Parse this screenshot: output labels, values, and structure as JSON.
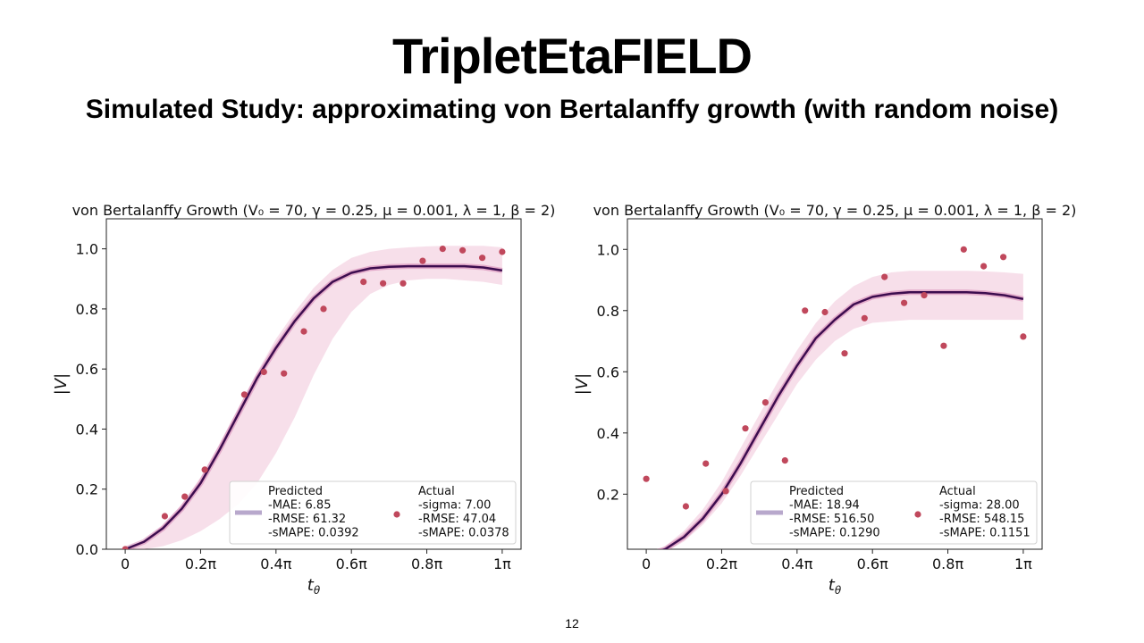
{
  "slide": {
    "title": "TripletEtaFIELD",
    "subtitle": "Simulated Study: approximating von Bertalanffy growth (with random noise)",
    "page_number": "12"
  },
  "colors": {
    "predicted_line": "#3d0d4f",
    "band": "#e8a2c2",
    "actual_points": "#c0485c",
    "legend_swatch": "#b8a8cc"
  },
  "chart_data": [
    {
      "type": "line",
      "title": "von Bertalanffy Growth (V₀ = 70, γ = 0.25, μ = 0.001, λ = 1, β = 2)",
      "xlabel": "tθ",
      "ylabel": "|V|",
      "xlim": [
        -0.05,
        1.05
      ],
      "ylim": [
        0.0,
        1.1
      ],
      "x_ticks": [
        0,
        0.2,
        0.4,
        0.6,
        0.8,
        1.0
      ],
      "x_tick_labels": [
        "0",
        "0.2π",
        "0.4π",
        "0.6π",
        "0.8π",
        "1π"
      ],
      "y_ticks": [
        0.0,
        0.2,
        0.4,
        0.6,
        0.8,
        1.0
      ],
      "y_tick_labels": [
        "0.0",
        "0.2",
        "0.4",
        "0.6",
        "0.8",
        "1.0"
      ],
      "series": [
        {
          "name": "Predicted",
          "x": [
            0.0,
            0.05,
            0.1,
            0.15,
            0.2,
            0.25,
            0.3,
            0.35,
            0.4,
            0.45,
            0.5,
            0.55,
            0.6,
            0.65,
            0.7,
            0.75,
            0.8,
            0.85,
            0.9,
            0.95,
            1.0
          ],
          "y": [
            0.0,
            0.025,
            0.07,
            0.135,
            0.22,
            0.33,
            0.45,
            0.57,
            0.67,
            0.76,
            0.835,
            0.89,
            0.92,
            0.935,
            0.94,
            0.942,
            0.942,
            0.942,
            0.942,
            0.938,
            0.928
          ],
          "band_upper": [
            0.0,
            0.03,
            0.08,
            0.15,
            0.24,
            0.35,
            0.47,
            0.59,
            0.7,
            0.79,
            0.87,
            0.93,
            0.97,
            0.99,
            1.0,
            1.005,
            1.008,
            1.01,
            1.01,
            1.01,
            1.005
          ],
          "band_lower": [
            0.0,
            0.0,
            0.01,
            0.03,
            0.06,
            0.1,
            0.15,
            0.22,
            0.32,
            0.44,
            0.58,
            0.7,
            0.79,
            0.85,
            0.88,
            0.895,
            0.9,
            0.9,
            0.895,
            0.89,
            0.88
          ]
        },
        {
          "name": "Actual",
          "x": [
            0.0,
            0.105,
            0.158,
            0.211,
            0.316,
            0.368,
            0.421,
            0.474,
            0.526,
            0.632,
            0.684,
            0.737,
            0.789,
            0.842,
            0.895,
            0.947,
            1.0
          ],
          "y": [
            0.0,
            0.11,
            0.175,
            0.265,
            0.515,
            0.59,
            0.585,
            0.725,
            0.8,
            0.89,
            0.885,
            0.885,
            0.96,
            1.0,
            0.995,
            0.97,
            0.99
          ]
        }
      ],
      "legend": {
        "position": "lower-right",
        "predicted": {
          "label": "Predicted",
          "mae": "-MAE: 6.85",
          "rmse": "-RMSE: 61.32",
          "smape": "-sMAPE: 0.0392"
        },
        "actual": {
          "label": "Actual",
          "sigma": "-sigma: 7.00",
          "rmse": "-RMSE: 47.04",
          "smape": "-sMAPE: 0.0378"
        }
      }
    },
    {
      "type": "line",
      "title": "von Bertalanffy Growth (V₀ = 70, γ = 0.25, μ = 0.001, λ = 1, β = 2)",
      "xlabel": "tθ",
      "ylabel": "|V|",
      "xlim": [
        -0.05,
        1.05
      ],
      "ylim": [
        0.02,
        1.1
      ],
      "x_ticks": [
        0,
        0.2,
        0.4,
        0.6,
        0.8,
        1.0
      ],
      "x_tick_labels": [
        "0",
        "0.2π",
        "0.4π",
        "0.6π",
        "0.8π",
        "1π"
      ],
      "y_ticks": [
        0.2,
        0.4,
        0.6,
        0.8,
        1.0
      ],
      "y_tick_labels": [
        "0.2",
        "0.4",
        "0.6",
        "0.8",
        "1.0"
      ],
      "series": [
        {
          "name": "Predicted",
          "x": [
            0.0,
            0.05,
            0.1,
            0.15,
            0.2,
            0.25,
            0.3,
            0.35,
            0.4,
            0.45,
            0.5,
            0.55,
            0.6,
            0.65,
            0.7,
            0.75,
            0.8,
            0.85,
            0.9,
            0.95,
            1.0
          ],
          "y": [
            0.0,
            0.02,
            0.06,
            0.12,
            0.2,
            0.3,
            0.41,
            0.52,
            0.62,
            0.71,
            0.77,
            0.82,
            0.845,
            0.855,
            0.86,
            0.86,
            0.86,
            0.86,
            0.857,
            0.85,
            0.838
          ],
          "band_upper": [
            0.0,
            0.03,
            0.08,
            0.15,
            0.24,
            0.35,
            0.46,
            0.57,
            0.67,
            0.76,
            0.83,
            0.88,
            0.91,
            0.925,
            0.93,
            0.93,
            0.93,
            0.93,
            0.928,
            0.925,
            0.92
          ],
          "band_lower": [
            0.0,
            0.01,
            0.045,
            0.1,
            0.17,
            0.26,
            0.36,
            0.46,
            0.56,
            0.64,
            0.7,
            0.74,
            0.76,
            0.765,
            0.77,
            0.77,
            0.77,
            0.77,
            0.77,
            0.77,
            0.77
          ]
        },
        {
          "name": "Actual",
          "x": [
            0.0,
            0.105,
            0.158,
            0.211,
            0.263,
            0.316,
            0.368,
            0.421,
            0.474,
            0.526,
            0.579,
            0.632,
            0.684,
            0.737,
            0.789,
            0.842,
            0.895,
            0.947,
            1.0
          ],
          "y": [
            0.25,
            0.16,
            0.3,
            0.21,
            0.415,
            0.5,
            0.31,
            0.8,
            0.795,
            0.66,
            0.775,
            0.91,
            0.825,
            0.85,
            0.685,
            1.0,
            0.945,
            0.975,
            0.715
          ]
        }
      ],
      "legend": {
        "position": "lower-right",
        "predicted": {
          "label": "Predicted",
          "mae": "-MAE: 18.94",
          "rmse": "-RMSE: 516.50",
          "smape": "-sMAPE: 0.1290"
        },
        "actual": {
          "label": "Actual",
          "sigma": "-sigma: 28.00",
          "rmse": "-RMSE: 548.15",
          "smape": "-sMAPE: 0.1151"
        }
      }
    }
  ]
}
